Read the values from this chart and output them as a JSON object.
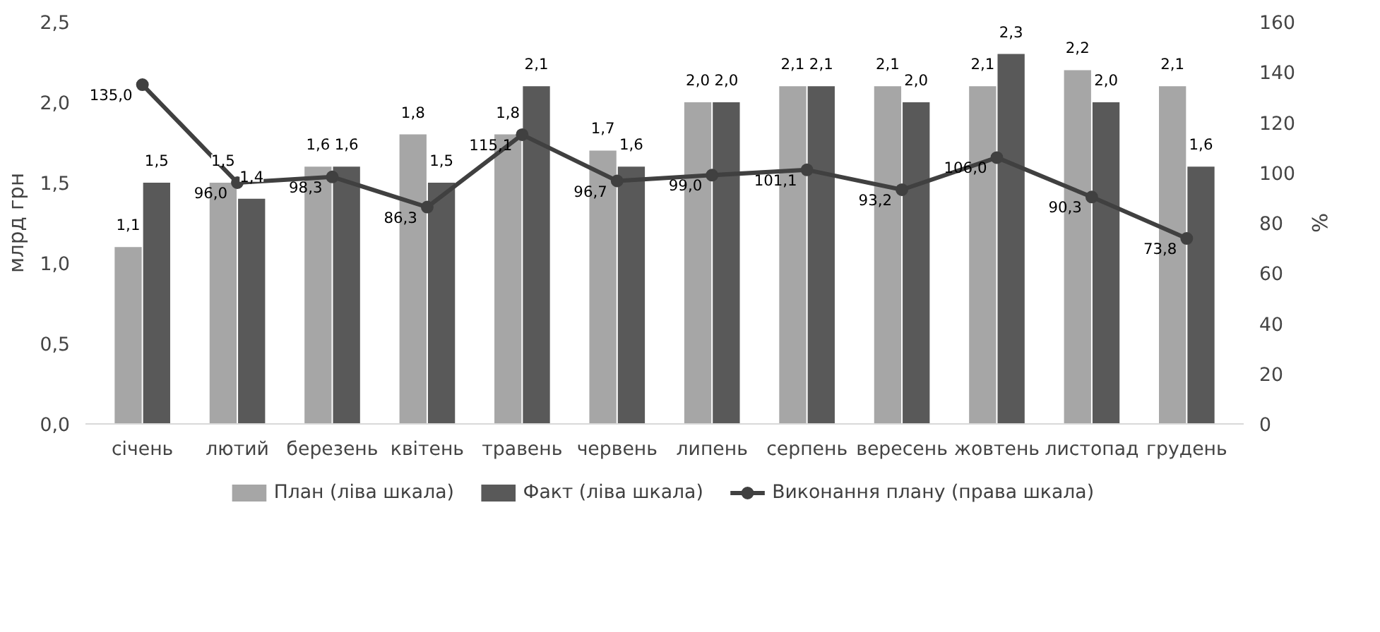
{
  "chart_data": {
    "type": "bar",
    "ylabel": "млрд грн",
    "y2label": "%",
    "categories": [
      "січень",
      "лютий",
      "березень",
      "квітень",
      "травень",
      "червень",
      "липень",
      "серпень",
      "вересень",
      "жовтень",
      "листопад",
      "грудень"
    ],
    "ylim": [
      0,
      2.5
    ],
    "yticks": [
      {
        "value": 0,
        "label": "0,0"
      },
      {
        "value": 0.5,
        "label": "0,5"
      },
      {
        "value": 1,
        "label": "1,0"
      },
      {
        "value": 1.5,
        "label": "1,5"
      },
      {
        "value": 2,
        "label": "2,0"
      },
      {
        "value": 2.5,
        "label": "2,5"
      }
    ],
    "y2lim": [
      0,
      160
    ],
    "y2ticks": [
      0,
      20,
      40,
      60,
      80,
      100,
      120,
      140,
      160
    ],
    "grid": false,
    "legend": "bottom",
    "series": [
      {
        "name": "План (ліва шкала)",
        "color": "#a6a6a6",
        "values": [
          1.1,
          1.5,
          1.6,
          1.8,
          1.8,
          1.7,
          2.0,
          2.1,
          2.1,
          2.1,
          2.2,
          2.1
        ],
        "value_labels": [
          "1,1",
          "1,5",
          "1,6",
          "1,8",
          "1,8",
          "1,7",
          "2,0",
          "2,1",
          "2,1",
          "2,1",
          "2,2",
          "2,1"
        ]
      },
      {
        "name": "Факт (ліва шкала)",
        "color": "#595959",
        "values": [
          1.5,
          1.4,
          1.6,
          1.5,
          2.1,
          1.6,
          2.0,
          2.1,
          2.0,
          2.3,
          2.0,
          1.6
        ],
        "value_labels": [
          "1,5",
          "1,4",
          "1,6",
          "1,5",
          "2,1",
          "1,6",
          "2,0",
          "2,1",
          "2,0",
          "2,3",
          "2,0",
          "1,6"
        ]
      },
      {
        "name": "Виконання плану (права шкала)",
        "type": "line",
        "axis": "y2",
        "marker": "circle",
        "line_style": "solid",
        "color": "#404040",
        "values": [
          135.0,
          96.0,
          98.3,
          86.3,
          115.1,
          96.7,
          99.0,
          101.1,
          93.2,
          106.0,
          90.3,
          73.8
        ],
        "value_labels": [
          "135,0",
          "96,0",
          "98,3",
          "86,3",
          "115,1",
          "96,7",
          "99,0",
          "101,1",
          "93,2",
          "106,0",
          "90,3",
          "73,8"
        ]
      }
    ]
  }
}
